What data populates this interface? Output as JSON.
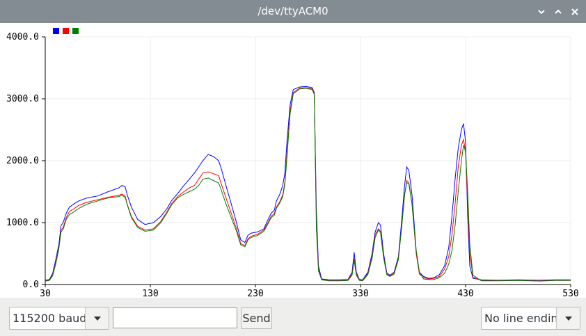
{
  "window": {
    "title": "/dev/ttyACM0"
  },
  "controls": {
    "baud": "115200 baud",
    "input_value": "",
    "input_placeholder": "",
    "send_label": "Send",
    "line_ending": "No line ending"
  },
  "chart_data": {
    "type": "line",
    "title": "",
    "xlabel": "",
    "ylabel": "",
    "xlim": [
      30,
      530
    ],
    "ylim": [
      0,
      4000
    ],
    "x_ticks": [
      "30",
      "130",
      "230",
      "330",
      "430",
      "530"
    ],
    "y_ticks": [
      "0.0",
      "1000.0",
      "2000.0",
      "3000.0",
      "4000.0"
    ],
    "grid": true,
    "legend": "top-left",
    "series": [
      {
        "color": "#0000ff",
        "points": [
          [
            30,
            70
          ],
          [
            34,
            80
          ],
          [
            37,
            180
          ],
          [
            40,
            400
          ],
          [
            43,
            650
          ],
          [
            45,
            950
          ],
          [
            47,
            1000
          ],
          [
            50,
            1150
          ],
          [
            53,
            1250
          ],
          [
            57,
            1300
          ],
          [
            62,
            1350
          ],
          [
            70,
            1400
          ],
          [
            80,
            1430
          ],
          [
            90,
            1500
          ],
          [
            100,
            1560
          ],
          [
            103,
            1600
          ],
          [
            106,
            1580
          ],
          [
            108,
            1450
          ],
          [
            112,
            1250
          ],
          [
            118,
            1050
          ],
          [
            125,
            970
          ],
          [
            133,
            1000
          ],
          [
            140,
            1100
          ],
          [
            146,
            1230
          ],
          [
            150,
            1350
          ],
          [
            156,
            1470
          ],
          [
            162,
            1600
          ],
          [
            167,
            1700
          ],
          [
            172,
            1800
          ],
          [
            176,
            1900
          ],
          [
            180,
            2000
          ],
          [
            185,
            2100
          ],
          [
            190,
            2070
          ],
          [
            195,
            2000
          ],
          [
            197,
            1900
          ],
          [
            202,
            1600
          ],
          [
            207,
            1300
          ],
          [
            212,
            1000
          ],
          [
            216,
            720
          ],
          [
            220,
            680
          ],
          [
            223,
            800
          ],
          [
            226,
            830
          ],
          [
            232,
            850
          ],
          [
            238,
            900
          ],
          [
            242,
            1050
          ],
          [
            245,
            1150
          ],
          [
            248,
            1200
          ],
          [
            250,
            1350
          ],
          [
            253,
            1450
          ],
          [
            256,
            1600
          ],
          [
            258,
            1800
          ],
          [
            260,
            2300
          ],
          [
            263,
            2900
          ],
          [
            266,
            3150
          ],
          [
            272,
            3190
          ],
          [
            278,
            3200
          ],
          [
            284,
            3180
          ],
          [
            286,
            3100
          ],
          [
            288,
            1200
          ],
          [
            290,
            300
          ],
          [
            293,
            90
          ],
          [
            300,
            75
          ],
          [
            310,
            75
          ],
          [
            318,
            80
          ],
          [
            322,
            200
          ],
          [
            324,
            520
          ],
          [
            326,
            200
          ],
          [
            329,
            80
          ],
          [
            332,
            75
          ],
          [
            337,
            200
          ],
          [
            341,
            500
          ],
          [
            344,
            850
          ],
          [
            347,
            1000
          ],
          [
            349,
            960
          ],
          [
            352,
            500
          ],
          [
            355,
            190
          ],
          [
            358,
            150
          ],
          [
            362,
            200
          ],
          [
            366,
            450
          ],
          [
            369,
            1000
          ],
          [
            372,
            1600
          ],
          [
            374,
            1900
          ],
          [
            376,
            1840
          ],
          [
            379,
            1450
          ],
          [
            383,
            550
          ],
          [
            386,
            200
          ],
          [
            390,
            130
          ],
          [
            395,
            100
          ],
          [
            400,
            110
          ],
          [
            405,
            160
          ],
          [
            410,
            300
          ],
          [
            414,
            600
          ],
          [
            417,
            1100
          ],
          [
            420,
            1700
          ],
          [
            423,
            2200
          ],
          [
            426,
            2500
          ],
          [
            428,
            2600
          ],
          [
            430,
            2300
          ],
          [
            432,
            1100
          ],
          [
            434,
            300
          ],
          [
            437,
            100
          ],
          [
            445,
            75
          ],
          [
            460,
            70
          ],
          [
            480,
            75
          ],
          [
            500,
            70
          ],
          [
            515,
            75
          ],
          [
            530,
            75
          ]
        ]
      },
      {
        "color": "#ff0000",
        "points": [
          [
            30,
            60
          ],
          [
            34,
            70
          ],
          [
            37,
            150
          ],
          [
            40,
            350
          ],
          [
            43,
            600
          ],
          [
            45,
            880
          ],
          [
            47,
            920
          ],
          [
            50,
            1080
          ],
          [
            53,
            1180
          ],
          [
            57,
            1220
          ],
          [
            62,
            1280
          ],
          [
            70,
            1330
          ],
          [
            80,
            1370
          ],
          [
            90,
            1410
          ],
          [
            100,
            1440
          ],
          [
            103,
            1460
          ],
          [
            106,
            1430
          ],
          [
            108,
            1300
          ],
          [
            112,
            1100
          ],
          [
            118,
            940
          ],
          [
            125,
            880
          ],
          [
            133,
            900
          ],
          [
            140,
            1020
          ],
          [
            146,
            1180
          ],
          [
            150,
            1300
          ],
          [
            156,
            1420
          ],
          [
            162,
            1500
          ],
          [
            167,
            1560
          ],
          [
            172,
            1600
          ],
          [
            176,
            1700
          ],
          [
            180,
            1800
          ],
          [
            185,
            1820
          ],
          [
            190,
            1790
          ],
          [
            195,
            1760
          ],
          [
            197,
            1650
          ],
          [
            202,
            1400
          ],
          [
            207,
            1150
          ],
          [
            212,
            900
          ],
          [
            216,
            660
          ],
          [
            220,
            630
          ],
          [
            223,
            740
          ],
          [
            226,
            780
          ],
          [
            232,
            810
          ],
          [
            238,
            880
          ],
          [
            242,
            1000
          ],
          [
            245,
            1100
          ],
          [
            248,
            1150
          ],
          [
            250,
            1250
          ],
          [
            253,
            1330
          ],
          [
            256,
            1450
          ],
          [
            258,
            1650
          ],
          [
            260,
            2100
          ],
          [
            263,
            2800
          ],
          [
            266,
            3100
          ],
          [
            272,
            3170
          ],
          [
            278,
            3180
          ],
          [
            284,
            3160
          ],
          [
            286,
            3080
          ],
          [
            288,
            1000
          ],
          [
            290,
            250
          ],
          [
            293,
            80
          ],
          [
            300,
            65
          ],
          [
            310,
            65
          ],
          [
            318,
            70
          ],
          [
            322,
            170
          ],
          [
            324,
            420
          ],
          [
            326,
            170
          ],
          [
            329,
            70
          ],
          [
            332,
            65
          ],
          [
            337,
            180
          ],
          [
            341,
            450
          ],
          [
            344,
            800
          ],
          [
            347,
            900
          ],
          [
            349,
            860
          ],
          [
            352,
            450
          ],
          [
            355,
            170
          ],
          [
            358,
            140
          ],
          [
            362,
            180
          ],
          [
            366,
            420
          ],
          [
            369,
            900
          ],
          [
            372,
            1450
          ],
          [
            374,
            1680
          ],
          [
            376,
            1650
          ],
          [
            379,
            1300
          ],
          [
            383,
            500
          ],
          [
            386,
            170
          ],
          [
            390,
            110
          ],
          [
            395,
            90
          ],
          [
            400,
            100
          ],
          [
            405,
            130
          ],
          [
            410,
            250
          ],
          [
            414,
            450
          ],
          [
            417,
            800
          ],
          [
            420,
            1300
          ],
          [
            423,
            1900
          ],
          [
            426,
            2250
          ],
          [
            428,
            2340
          ],
          [
            430,
            2150
          ],
          [
            432,
            1300
          ],
          [
            434,
            500
          ],
          [
            437,
            120
          ],
          [
            445,
            65
          ],
          [
            460,
            65
          ],
          [
            480,
            70
          ],
          [
            500,
            60
          ],
          [
            515,
            70
          ],
          [
            530,
            70
          ]
        ]
      },
      {
        "color": "#008000",
        "points": [
          [
            30,
            55
          ],
          [
            34,
            65
          ],
          [
            37,
            140
          ],
          [
            40,
            330
          ],
          [
            43,
            580
          ],
          [
            45,
            850
          ],
          [
            47,
            890
          ],
          [
            50,
            1050
          ],
          [
            53,
            1130
          ],
          [
            57,
            1170
          ],
          [
            62,
            1230
          ],
          [
            70,
            1300
          ],
          [
            80,
            1350
          ],
          [
            90,
            1400
          ],
          [
            100,
            1420
          ],
          [
            103,
            1440
          ],
          [
            106,
            1410
          ],
          [
            108,
            1290
          ],
          [
            112,
            1080
          ],
          [
            118,
            920
          ],
          [
            125,
            860
          ],
          [
            133,
            880
          ],
          [
            140,
            1000
          ],
          [
            146,
            1160
          ],
          [
            150,
            1280
          ],
          [
            156,
            1400
          ],
          [
            162,
            1460
          ],
          [
            167,
            1500
          ],
          [
            172,
            1540
          ],
          [
            176,
            1600
          ],
          [
            180,
            1700
          ],
          [
            185,
            1720
          ],
          [
            190,
            1680
          ],
          [
            195,
            1640
          ],
          [
            197,
            1550
          ],
          [
            202,
            1300
          ],
          [
            207,
            1080
          ],
          [
            212,
            860
          ],
          [
            216,
            640
          ],
          [
            220,
            610
          ],
          [
            223,
            720
          ],
          [
            226,
            760
          ],
          [
            232,
            790
          ],
          [
            238,
            860
          ],
          [
            242,
            980
          ],
          [
            245,
            1080
          ],
          [
            248,
            1120
          ],
          [
            250,
            1230
          ],
          [
            253,
            1310
          ],
          [
            256,
            1420
          ],
          [
            258,
            1620
          ],
          [
            260,
            2050
          ],
          [
            263,
            2750
          ],
          [
            266,
            3080
          ],
          [
            272,
            3160
          ],
          [
            278,
            3170
          ],
          [
            284,
            3150
          ],
          [
            286,
            3070
          ],
          [
            288,
            900
          ],
          [
            290,
            220
          ],
          [
            293,
            75
          ],
          [
            300,
            60
          ],
          [
            310,
            60
          ],
          [
            318,
            65
          ],
          [
            322,
            150
          ],
          [
            324,
            390
          ],
          [
            326,
            150
          ],
          [
            329,
            65
          ],
          [
            332,
            60
          ],
          [
            337,
            160
          ],
          [
            341,
            420
          ],
          [
            344,
            760
          ],
          [
            347,
            880
          ],
          [
            349,
            840
          ],
          [
            352,
            430
          ],
          [
            355,
            160
          ],
          [
            358,
            130
          ],
          [
            362,
            170
          ],
          [
            366,
            400
          ],
          [
            369,
            900
          ],
          [
            372,
            1450
          ],
          [
            374,
            1650
          ],
          [
            376,
            1620
          ],
          [
            379,
            1300
          ],
          [
            383,
            550
          ],
          [
            386,
            200
          ],
          [
            390,
            90
          ],
          [
            395,
            80
          ],
          [
            400,
            80
          ],
          [
            405,
            110
          ],
          [
            410,
            180
          ],
          [
            414,
            330
          ],
          [
            417,
            550
          ],
          [
            420,
            950
          ],
          [
            423,
            1500
          ],
          [
            426,
            2000
          ],
          [
            428,
            2250
          ],
          [
            430,
            2150
          ],
          [
            432,
            1500
          ],
          [
            434,
            650
          ],
          [
            437,
            150
          ],
          [
            445,
            60
          ],
          [
            460,
            60
          ],
          [
            480,
            65
          ],
          [
            500,
            55
          ],
          [
            515,
            65
          ],
          [
            530,
            65
          ]
        ]
      }
    ]
  }
}
